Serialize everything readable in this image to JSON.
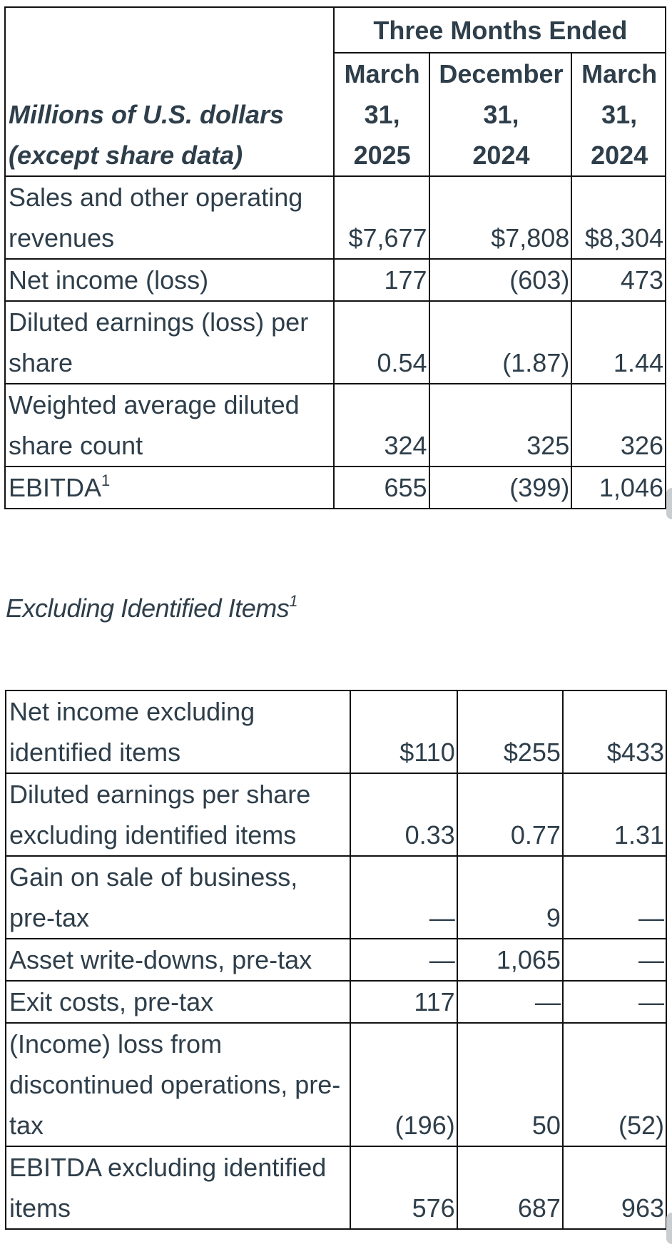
{
  "summary": {
    "units_line1": "Millions of U.S. dollars",
    "units_line2": "(except share data)",
    "period_header": "Three Months Ended",
    "columns": [
      {
        "line1": "March",
        "line2": "31,",
        "line3": "2025"
      },
      {
        "line1": "December",
        "line2": "31,",
        "line3": "2024"
      },
      {
        "line1": "March",
        "line2": "31,",
        "line3": "2024"
      }
    ],
    "rows": [
      {
        "label": "Sales and other operating revenues",
        "values": [
          "$7,677",
          "$7,808",
          "$8,304"
        ]
      },
      {
        "label": "Net income (loss)",
        "values": [
          "177",
          "(603)",
          "473"
        ]
      },
      {
        "label": "Diluted earnings (loss) per share",
        "values": [
          "0.54",
          "(1.87)",
          "1.44"
        ]
      },
      {
        "label": "Weighted average diluted share count",
        "values": [
          "324",
          "325",
          "326"
        ]
      }
    ],
    "ebitda": {
      "label": "EBITDA",
      "footnote": "1",
      "values": [
        "655",
        "(399)",
        "1,046"
      ]
    }
  },
  "identified": {
    "heading": "Excluding Identified Items",
    "heading_footnote": "1",
    "rows": [
      {
        "label": "Net income excluding identified items",
        "values": [
          "$110",
          "$255",
          "$433"
        ]
      },
      {
        "label": "Diluted earnings per share excluding identified items",
        "values": [
          "0.33",
          "0.77",
          "1.31"
        ]
      },
      {
        "label": "Gain on sale of business, pre-tax",
        "values": [
          "—",
          "9",
          "—"
        ]
      },
      {
        "label": "Asset write-downs, pre-tax",
        "values": [
          "—",
          "1,065",
          "—"
        ]
      },
      {
        "label": "Exit costs, pre-tax",
        "values": [
          "117",
          "—",
          "—"
        ]
      },
      {
        "label": "(Income) loss from discontinued operations, pre-tax",
        "values": [
          "(196)",
          "50",
          "(52)"
        ]
      },
      {
        "label": "EBITDA excluding identified items",
        "values": [
          "576",
          "687",
          "963"
        ]
      }
    ]
  }
}
